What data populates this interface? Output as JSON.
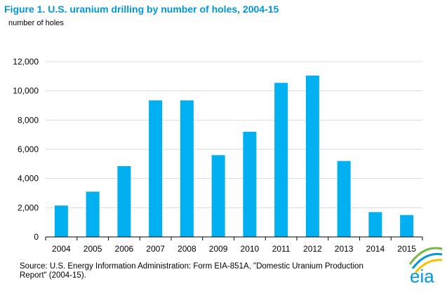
{
  "chart_data": {
    "type": "bar",
    "title": "Figure 1.  U.S. uranium drilling by number of holes, 2004-15",
    "ylabel": "number of holes",
    "xlabel": "",
    "categories": [
      "2004",
      "2005",
      "2006",
      "2007",
      "2008",
      "2009",
      "2010",
      "2011",
      "2012",
      "2013",
      "2014",
      "2015"
    ],
    "values": [
      2150,
      3100,
      4850,
      9350,
      9350,
      5600,
      7200,
      10550,
      11050,
      5200,
      1700,
      1500
    ],
    "ylim": [
      0,
      12000
    ],
    "yticks": [
      "0",
      "2,000",
      "4,000",
      "6,000",
      "8,000",
      "10,000",
      "12,000"
    ],
    "ytick_values": [
      0,
      2000,
      4000,
      6000,
      8000,
      10000,
      12000
    ],
    "grid": true,
    "bar_color": "#00B0F0"
  },
  "source": "Source: U.S. Energy Information Administration: Form EIA-851A, \"Domestic Uranium Production Report\" (2004-15).",
  "logo_text": "eia",
  "colors": {
    "title": "#0096D7",
    "grid": "#D9D9D9",
    "logo_green": "#7AB648",
    "logo_blue": "#0096D7",
    "logo_yellow": "#F5C400"
  }
}
